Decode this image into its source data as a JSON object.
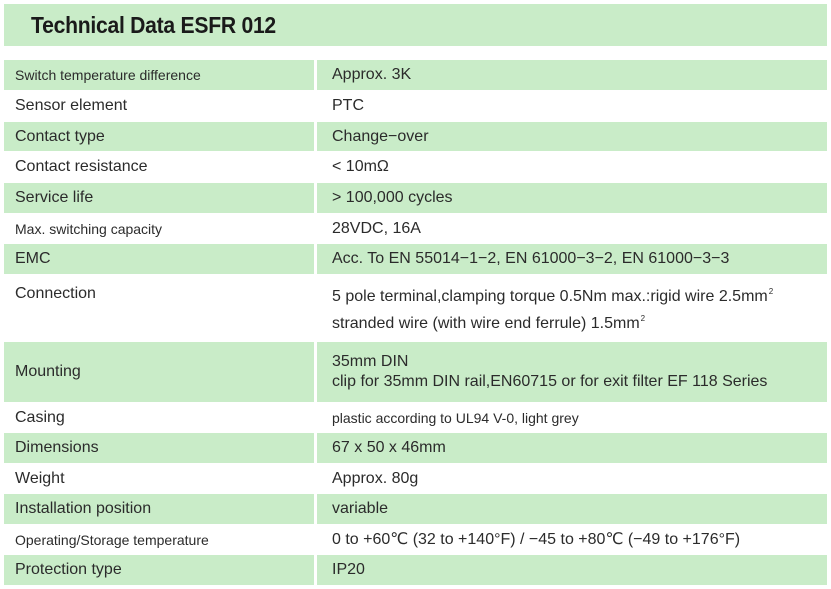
{
  "title": "Technical Data ESFR 012",
  "rows": [
    {
      "label": "Switch temperature difference",
      "value": [
        "Approx. 3K"
      ]
    },
    {
      "label": "Sensor  element",
      "value": [
        "PTC"
      ]
    },
    {
      "label": "Contact type",
      "value": [
        "Change−over"
      ]
    },
    {
      "label": "Contact resistance",
      "value": [
        "< 10mΩ"
      ]
    },
    {
      "label": "Service   life",
      "value": [
        "> 100,000 cycles"
      ]
    },
    {
      "label": "Max. switching capacity",
      "value": [
        "28VDC, 16A"
      ]
    },
    {
      "label": "EMC",
      "value": [
        "Acc. To EN 55014−1−2, EN 61000−3−2, EN 61000−3−3"
      ]
    },
    {
      "label": "Connection",
      "value": [
        "5   pole terminal,clamping torque 0.5Nm max.:rigid wire 2.5mm",
        "stranded wire (with wire end ferrule) 1.5mm"
      ],
      "sup": "2"
    },
    {
      "label": "Mounting",
      "value": [
        "35mm DIN",
        "clip for 35mm DIN rail,EN60715 or for exit filter EF 118 Series"
      ]
    },
    {
      "label": "Casing",
      "value": [
        "plastic according to UL94 V-0, light grey"
      ]
    },
    {
      "label": "Dimensions",
      "value": [
        "67 x 50 x 46mm"
      ]
    },
    {
      "label": "Weight",
      "value": [
        "Approx. 80g"
      ]
    },
    {
      "label": "Installation position",
      "value": [
        "variable"
      ]
    },
    {
      "label": "Operating/Storage temperature",
      "value": [
        "0 to +60℃ (32 to +140°F) / −45 to +80℃ (−49 to +176°F)"
      ]
    },
    {
      "label": "Protection type",
      "value": [
        "IP20"
      ]
    }
  ],
  "colors": {
    "row_green": "#c9ecc8",
    "row_white": "#ffffff",
    "text": "#2b2b2b"
  }
}
